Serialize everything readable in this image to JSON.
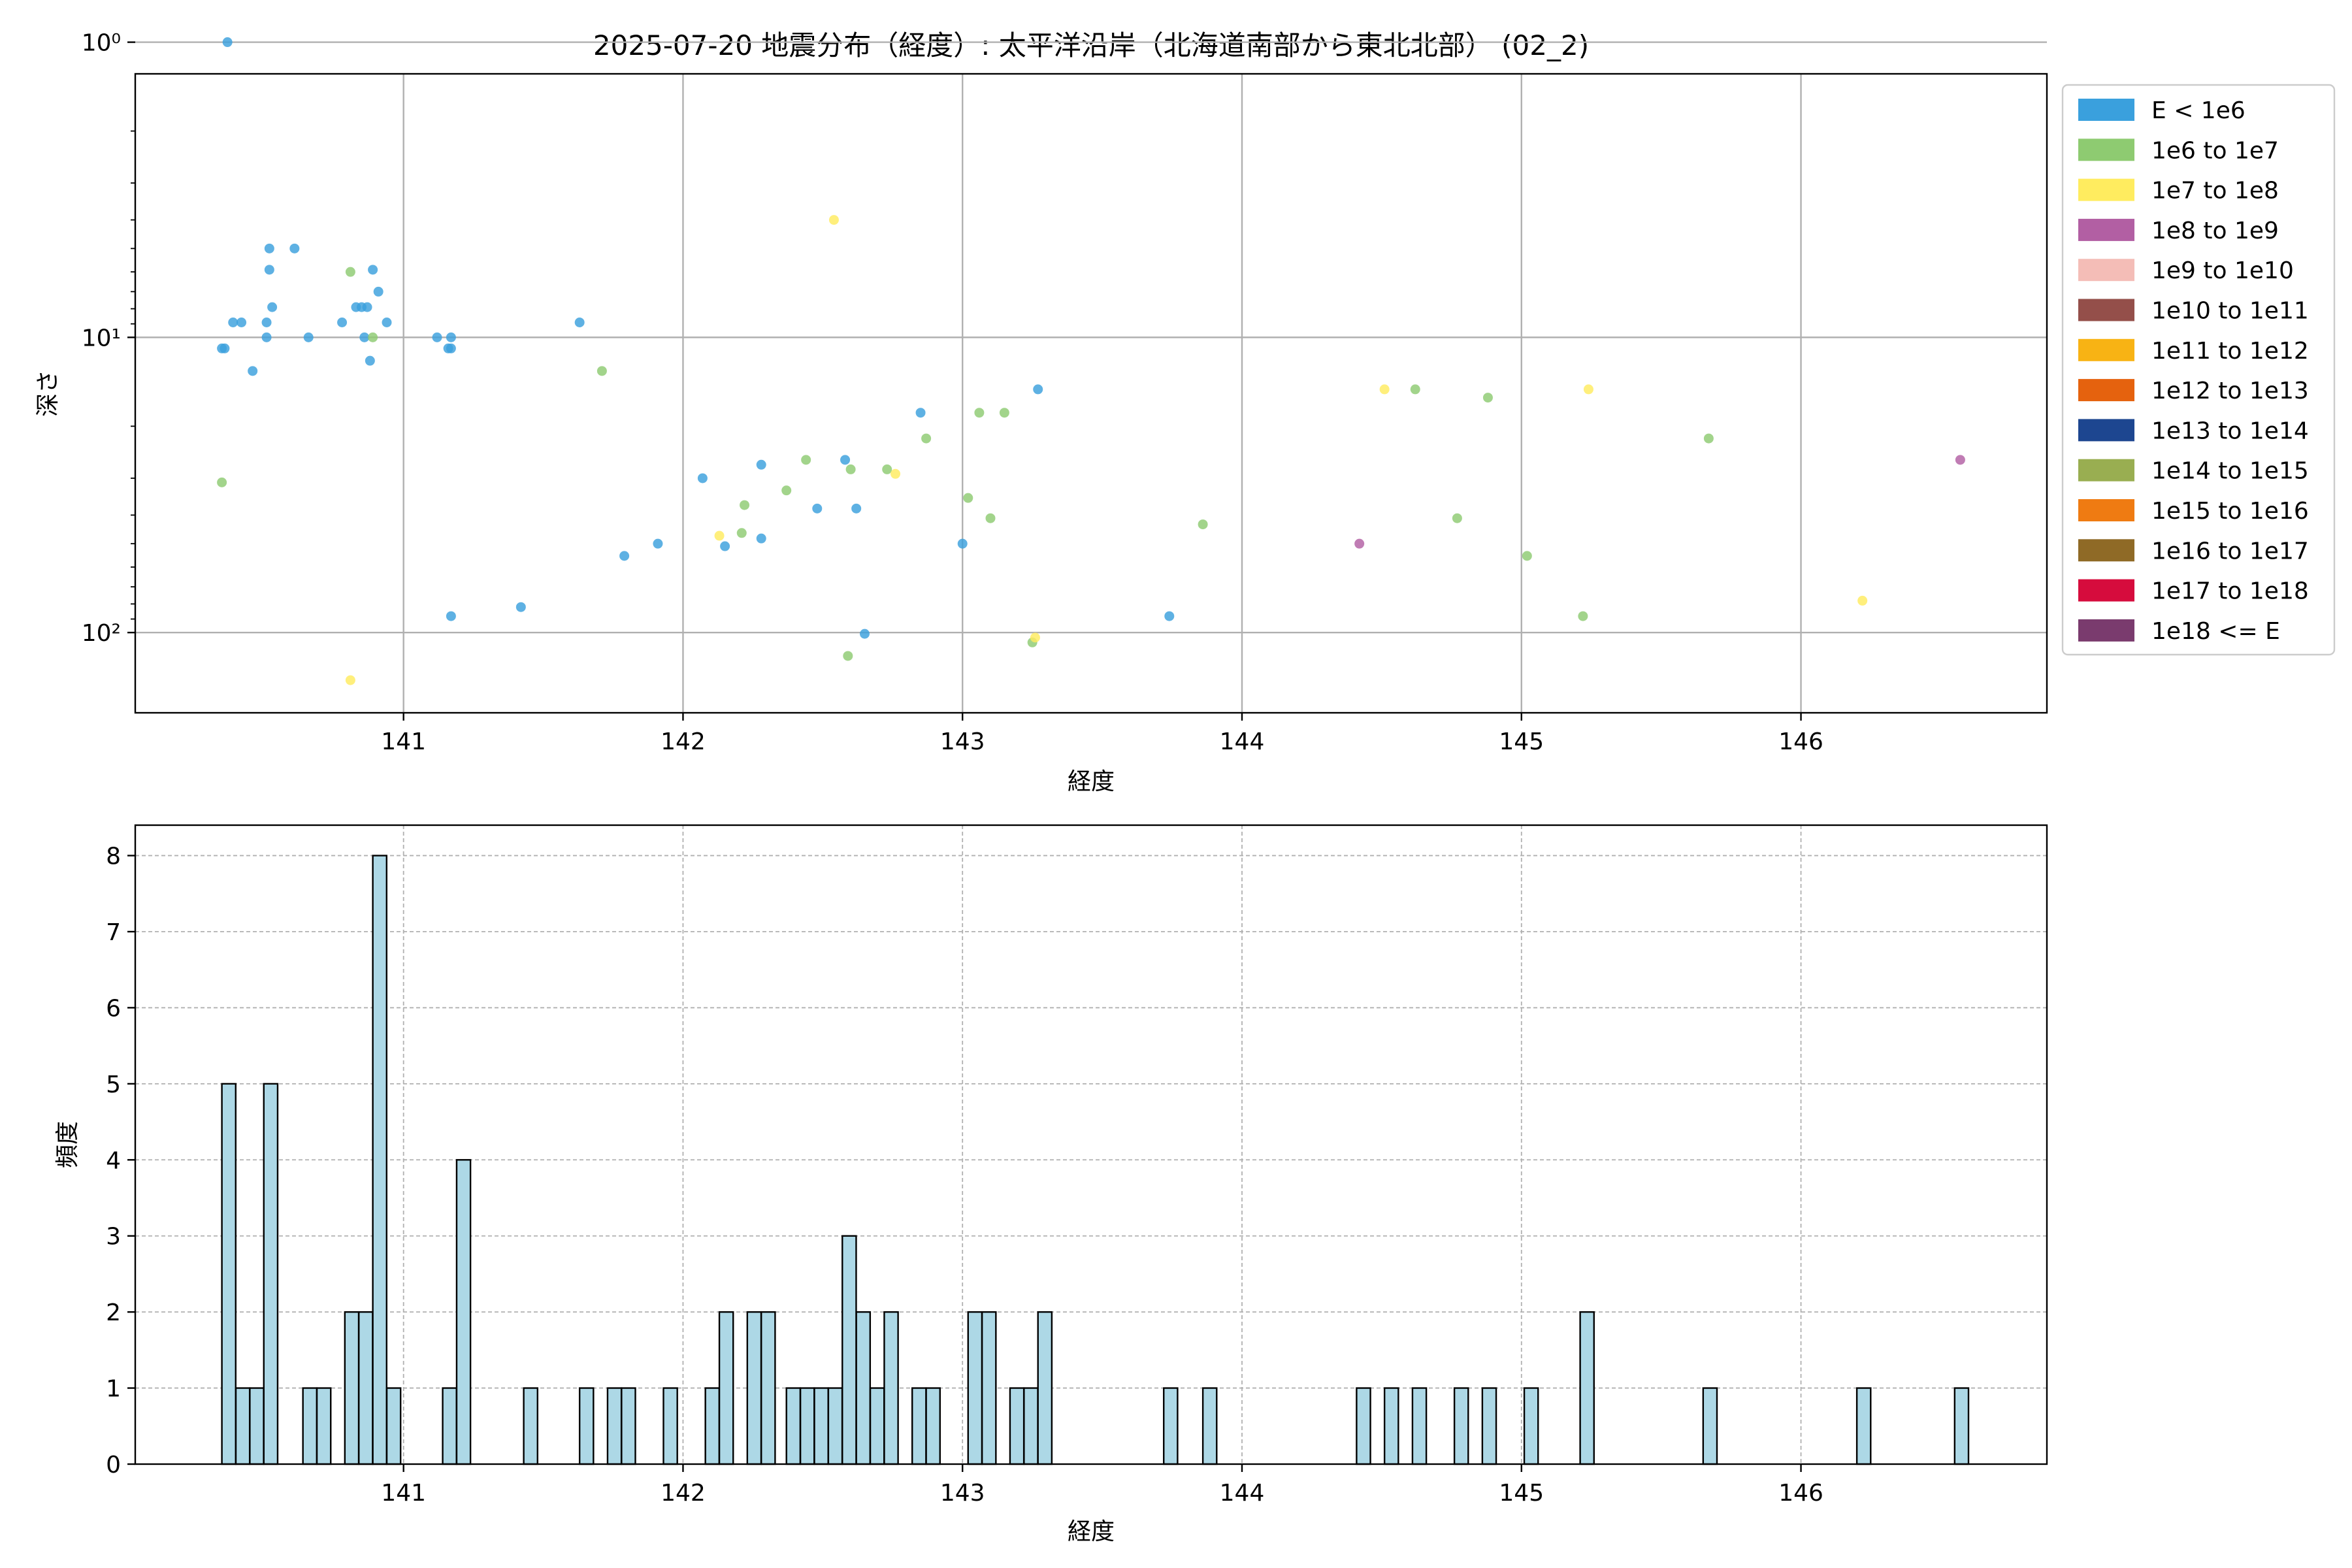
{
  "title": "2025-07-20 地震分布（経度）: 太平洋沿岸（北海道南部から東北北部） (02_2)",
  "chart_data": [
    {
      "type": "scatter",
      "xlabel": "経度",
      "ylabel": "深さ",
      "y_scale": "log",
      "y_inverted": true,
      "xlim": [
        140.04,
        146.88
      ],
      "ylim": [
        1.28,
        187
      ],
      "x_ticks": [
        141,
        142,
        143,
        144,
        145,
        146
      ],
      "y_ticks": [
        {
          "value": 1,
          "label": "10⁰"
        },
        {
          "value": 10,
          "label": "10¹"
        },
        {
          "value": 100,
          "label": "10²"
        }
      ],
      "grid": true,
      "legend_position": "outside-right",
      "legend": [
        {
          "label": "E < 1e6",
          "color": "#3aa0dd"
        },
        {
          "label": "1e6 to 1e7",
          "color": "#8ecb71"
        },
        {
          "label": "1e7 to 1e8",
          "color": "#ffec5f"
        },
        {
          "label": "1e8 to 1e9",
          "color": "#b25fa3"
        },
        {
          "label": "1e9 to 1e10",
          "color": "#f4bdb7"
        },
        {
          "label": "1e10 to 1e11",
          "color": "#944f4a"
        },
        {
          "label": "1e11 to 1e12",
          "color": "#f8b314"
        },
        {
          "label": "1e12 to 1e13",
          "color": "#e5620e"
        },
        {
          "label": "1e13 to 1e14",
          "color": "#1d4690"
        },
        {
          "label": "1e14 to 1e15",
          "color": "#99ae51"
        },
        {
          "label": "1e15 to 1e16",
          "color": "#ef7b12"
        },
        {
          "label": "1e16 to 1e17",
          "color": "#8f6a26"
        },
        {
          "label": "1e17 to 1e18",
          "color": "#d60c3d"
        },
        {
          "label": "1e18 <= E",
          "color": "#7a3b6e"
        }
      ],
      "series": [
        {
          "legend_index": 0,
          "points": [
            [
              140.37,
              1.0
            ],
            [
              140.35,
              10.9
            ],
            [
              140.36,
              10.9
            ],
            [
              140.39,
              8.9
            ],
            [
              140.42,
              8.9
            ],
            [
              140.46,
              13.0
            ],
            [
              140.51,
              10.0
            ],
            [
              140.51,
              8.9
            ],
            [
              140.52,
              5.9
            ],
            [
              140.52,
              5.0
            ],
            [
              140.53,
              7.9
            ],
            [
              140.61,
              5.0
            ],
            [
              140.66,
              10.0
            ],
            [
              140.78,
              8.9
            ],
            [
              140.83,
              7.9
            ],
            [
              140.85,
              7.9
            ],
            [
              140.86,
              10.0
            ],
            [
              140.87,
              7.9
            ],
            [
              140.88,
              12.0
            ],
            [
              140.89,
              5.9
            ],
            [
              140.91,
              7.0
            ],
            [
              140.94,
              8.9
            ],
            [
              141.12,
              10.0
            ],
            [
              141.16,
              10.9
            ],
            [
              141.17,
              10.9
            ],
            [
              141.17,
              10.0
            ],
            [
              141.17,
              88.0
            ],
            [
              141.42,
              82.0
            ],
            [
              141.63,
              8.9
            ],
            [
              141.79,
              55.0
            ],
            [
              141.91,
              50.0
            ],
            [
              142.07,
              30.0
            ],
            [
              142.15,
              51.0
            ],
            [
              142.28,
              27.0
            ],
            [
              142.28,
              48.0
            ],
            [
              142.48,
              38.0
            ],
            [
              142.58,
              26.0
            ],
            [
              142.62,
              38.0
            ],
            [
              142.65,
              101.0
            ],
            [
              142.85,
              18.0
            ],
            [
              143.0,
              50.0
            ],
            [
              143.27,
              15.0
            ],
            [
              143.74,
              88.0
            ]
          ]
        },
        {
          "legend_index": 1,
          "points": [
            [
              140.35,
              31.0
            ],
            [
              140.81,
              6.0
            ],
            [
              140.89,
              10.0
            ],
            [
              141.71,
              13.0
            ],
            [
              142.21,
              46.0
            ],
            [
              142.22,
              37.0
            ],
            [
              142.37,
              33.0
            ],
            [
              142.44,
              26.0
            ],
            [
              142.59,
              120.0
            ],
            [
              142.6,
              28.0
            ],
            [
              142.73,
              28.0
            ],
            [
              142.87,
              22.0
            ],
            [
              143.02,
              35.0
            ],
            [
              143.06,
              18.0
            ],
            [
              143.1,
              41.0
            ],
            [
              143.15,
              18.0
            ],
            [
              143.25,
              108.0
            ],
            [
              143.86,
              43.0
            ],
            [
              144.62,
              15.0
            ],
            [
              144.77,
              41.0
            ],
            [
              144.88,
              16.0
            ],
            [
              145.02,
              55.0
            ],
            [
              145.22,
              88.0
            ],
            [
              145.67,
              22.0
            ]
          ]
        },
        {
          "legend_index": 2,
          "points": [
            [
              140.81,
              145.0
            ],
            [
              142.13,
              47.0
            ],
            [
              142.54,
              4.0
            ],
            [
              142.76,
              29.0
            ],
            [
              143.26,
              104.0
            ],
            [
              144.51,
              15.0
            ],
            [
              145.24,
              15.0
            ],
            [
              146.22,
              78.0
            ]
          ]
        },
        {
          "legend_index": 3,
          "points": [
            [
              144.42,
              50.0
            ],
            [
              146.57,
              26.0
            ]
          ]
        }
      ]
    },
    {
      "type": "bar",
      "xlabel": "経度",
      "ylabel": "頻度",
      "xlim": [
        140.04,
        146.88
      ],
      "ylim": [
        0,
        8.4
      ],
      "x_ticks": [
        141,
        142,
        143,
        144,
        145,
        146
      ],
      "y_ticks": [
        0,
        1,
        2,
        3,
        4,
        5,
        6,
        7,
        8
      ],
      "grid": true,
      "bar_color": "#add8e6",
      "bar_edge_color": "#000000",
      "bin_width": 0.0495,
      "bins": [
        [
          140.35,
          5
        ],
        [
          140.4,
          1
        ],
        [
          140.45,
          1
        ],
        [
          140.5,
          5
        ],
        [
          140.64,
          1
        ],
        [
          140.69,
          1
        ],
        [
          140.79,
          2
        ],
        [
          140.84,
          2
        ],
        [
          140.89,
          8
        ],
        [
          140.94,
          1
        ],
        [
          141.14,
          1
        ],
        [
          141.19,
          4
        ],
        [
          141.43,
          1
        ],
        [
          141.63,
          1
        ],
        [
          141.73,
          1
        ],
        [
          141.78,
          1
        ],
        [
          141.93,
          1
        ],
        [
          142.08,
          1
        ],
        [
          142.13,
          2
        ],
        [
          142.23,
          2
        ],
        [
          142.28,
          2
        ],
        [
          142.37,
          1
        ],
        [
          142.42,
          1
        ],
        [
          142.47,
          1
        ],
        [
          142.52,
          1
        ],
        [
          142.57,
          3
        ],
        [
          142.62,
          2
        ],
        [
          142.67,
          1
        ],
        [
          142.72,
          2
        ],
        [
          142.82,
          1
        ],
        [
          142.87,
          1
        ],
        [
          143.02,
          2
        ],
        [
          143.07,
          2
        ],
        [
          143.17,
          1
        ],
        [
          143.22,
          1
        ],
        [
          143.27,
          2
        ],
        [
          143.72,
          1
        ],
        [
          143.86,
          1
        ],
        [
          144.41,
          1
        ],
        [
          144.51,
          1
        ],
        [
          144.61,
          1
        ],
        [
          144.76,
          1
        ],
        [
          144.86,
          1
        ],
        [
          145.01,
          1
        ],
        [
          145.21,
          2
        ],
        [
          145.65,
          1
        ],
        [
          146.2,
          1
        ],
        [
          146.55,
          1
        ]
      ]
    }
  ]
}
